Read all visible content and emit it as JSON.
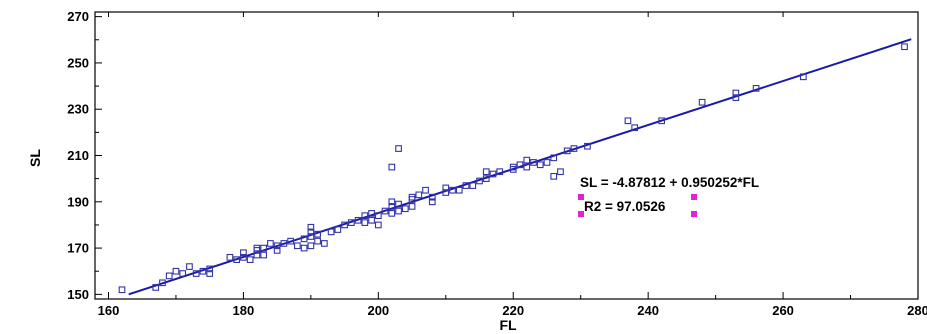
{
  "chart_data": {
    "type": "scatter",
    "title": "",
    "xlabel": "FL",
    "ylabel": "SL",
    "xlim": [
      158,
      280
    ],
    "ylim": [
      148,
      272
    ],
    "xticks": [
      160,
      180,
      200,
      220,
      240,
      260,
      280
    ],
    "yticks": [
      150,
      170,
      190,
      210,
      230,
      250,
      270
    ],
    "grid": false,
    "legend": "none",
    "point_color": "#3333aa",
    "line_color": "#1a1aa8",
    "handle_color": "#e020e0",
    "fit_line": {
      "intercept": -4.87812,
      "slope": 0.950252,
      "x_range": [
        163,
        279
      ]
    },
    "annotations": {
      "equation": "SL = -4.87812 + 0.950252*FL",
      "r2": "R2 = 97.0526"
    },
    "series": [
      {
        "type": "scatter",
        "points": [
          [
            162,
            152
          ],
          [
            167,
            153
          ],
          [
            168,
            155
          ],
          [
            169,
            158
          ],
          [
            170,
            160
          ],
          [
            171,
            159
          ],
          [
            172,
            162
          ],
          [
            173,
            159
          ],
          [
            174,
            160
          ],
          [
            175,
            159
          ],
          [
            175,
            161
          ],
          [
            178,
            166
          ],
          [
            179,
            165
          ],
          [
            180,
            166
          ],
          [
            180,
            168
          ],
          [
            181,
            165
          ],
          [
            182,
            167
          ],
          [
            182,
            169
          ],
          [
            182,
            170
          ],
          [
            183,
            167
          ],
          [
            183,
            170
          ],
          [
            184,
            172
          ],
          [
            185,
            169
          ],
          [
            185,
            171
          ],
          [
            186,
            172
          ],
          [
            187,
            173
          ],
          [
            188,
            171
          ],
          [
            189,
            170
          ],
          [
            189,
            174
          ],
          [
            190,
            171
          ],
          [
            190,
            175
          ],
          [
            190,
            177
          ],
          [
            190,
            179
          ],
          [
            191,
            176
          ],
          [
            191,
            173
          ],
          [
            192,
            172
          ],
          [
            193,
            177
          ],
          [
            194,
            178
          ],
          [
            195,
            180
          ],
          [
            196,
            181
          ],
          [
            197,
            182
          ],
          [
            198,
            181
          ],
          [
            198,
            184
          ],
          [
            199,
            182
          ],
          [
            199,
            185
          ],
          [
            200,
            180
          ],
          [
            200,
            184
          ],
          [
            201,
            186
          ],
          [
            202,
            185
          ],
          [
            202,
            188
          ],
          [
            202,
            190
          ],
          [
            203,
            186
          ],
          [
            203,
            189
          ],
          [
            204,
            187
          ],
          [
            205,
            188
          ],
          [
            205,
            191
          ],
          [
            205,
            192
          ],
          [
            206,
            193
          ],
          [
            207,
            195
          ],
          [
            208,
            192
          ],
          [
            208,
            190
          ],
          [
            210,
            194
          ],
          [
            210,
            196
          ],
          [
            211,
            195
          ],
          [
            212,
            195
          ],
          [
            213,
            197
          ],
          [
            214,
            197
          ],
          [
            215,
            199
          ],
          [
            216,
            200
          ],
          [
            216,
            203
          ],
          [
            217,
            202
          ],
          [
            218,
            203
          ],
          [
            220,
            204
          ],
          [
            220,
            205
          ],
          [
            221,
            206
          ],
          [
            222,
            205
          ],
          [
            222,
            208
          ],
          [
            223,
            207
          ],
          [
            224,
            206
          ],
          [
            225,
            207
          ],
          [
            226,
            209
          ],
          [
            226,
            201
          ],
          [
            227,
            203
          ],
          [
            228,
            212
          ],
          [
            229,
            213
          ],
          [
            231,
            214
          ],
          [
            237,
            225
          ],
          [
            238,
            222
          ],
          [
            242,
            225
          ],
          [
            248,
            233
          ],
          [
            253,
            235
          ],
          [
            253,
            237
          ],
          [
            256,
            239
          ],
          [
            263,
            244
          ],
          [
            278,
            257
          ],
          [
            202,
            205
          ],
          [
            203,
            213
          ]
        ]
      }
    ]
  }
}
